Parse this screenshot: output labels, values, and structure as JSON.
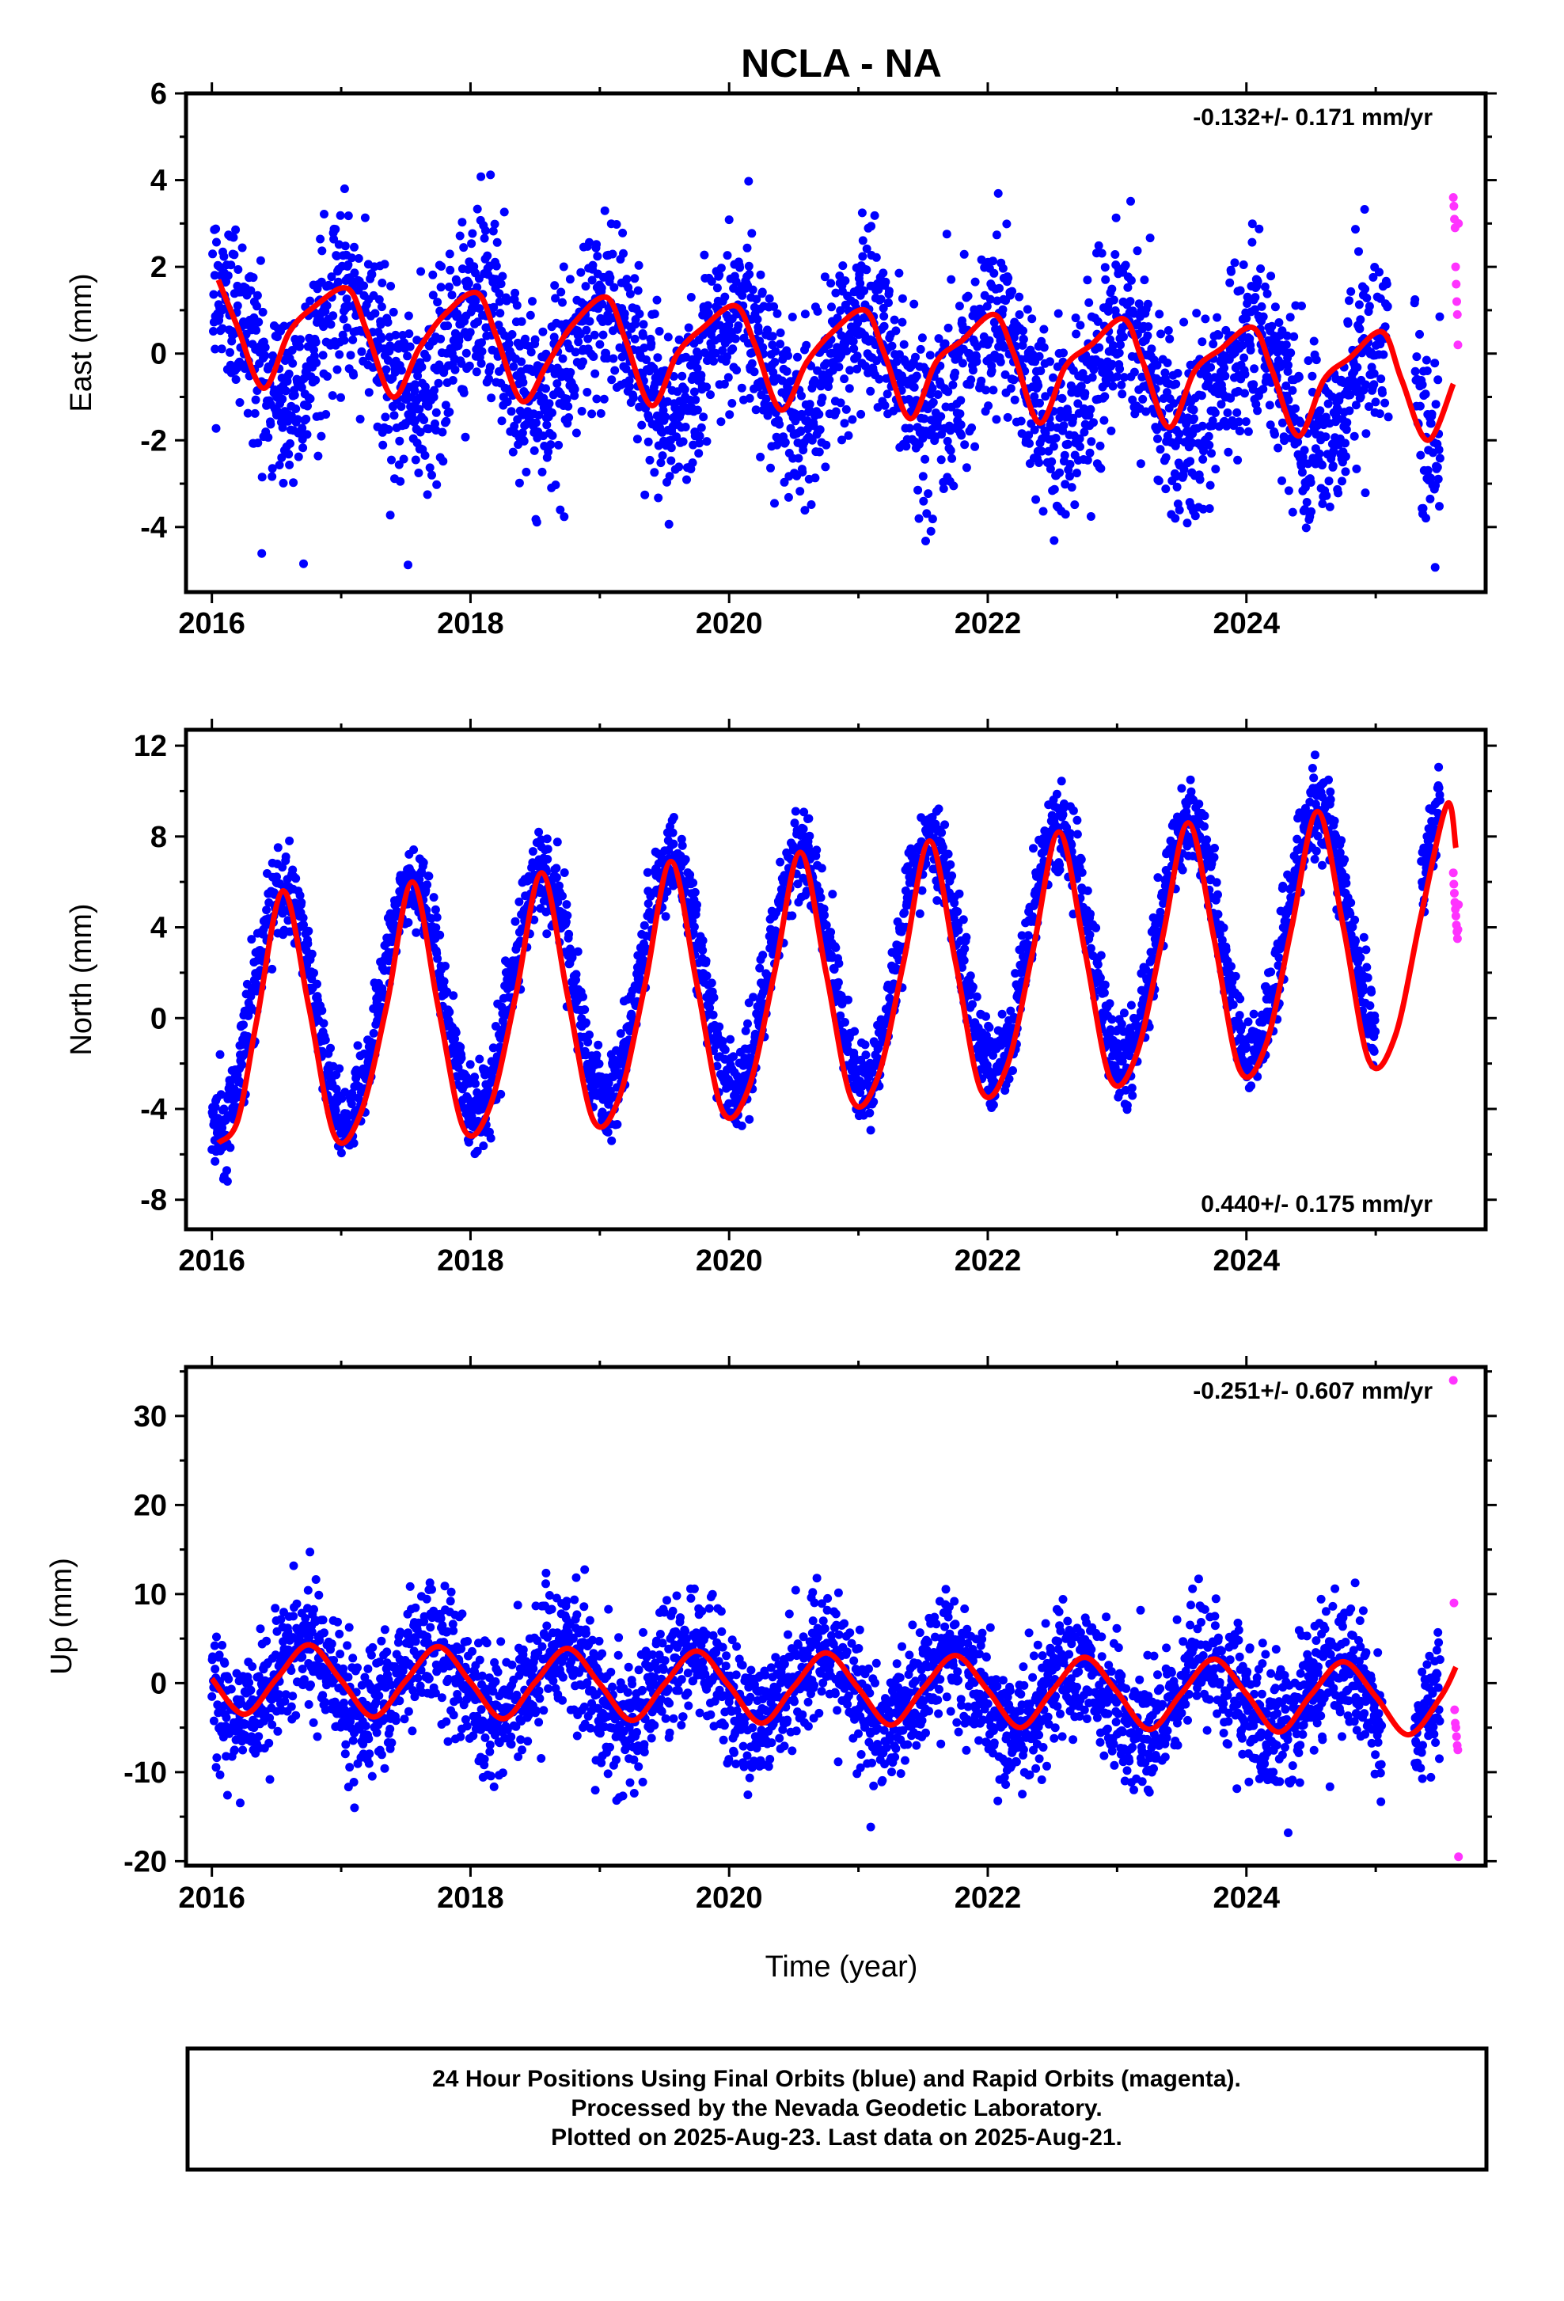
{
  "title": "NCLA - NA",
  "xlabel": "Time (year)",
  "colors": {
    "final": "#0000ff",
    "rapid": "#ff33ff",
    "model": "#ff0000",
    "axis": "#000000"
  },
  "caption": {
    "line1": "24 Hour Positions Using Final Orbits (blue) and Rapid Orbits (magenta).",
    "line2": "Processed by the Nevada Geodetic Laboratory.",
    "line3": "Plotted on 2025-Aug-23. Last data on 2025-Aug-21."
  },
  "chart_data": [
    {
      "type": "scatter",
      "ylabel": "East (mm)",
      "rate_text": "-0.132+/- 0.171 mm/yr",
      "rate_position": "top-right",
      "xlim": [
        2015.8,
        2025.85
      ],
      "ylim": [
        -5.5,
        6
      ],
      "x_ticks": [
        "2016",
        "2018",
        "2020",
        "2022",
        "2024"
      ],
      "y_ticks": [
        "-4",
        "-2",
        "0",
        "2",
        "4",
        "6"
      ],
      "y_tick_values": [
        -4,
        -2,
        0,
        2,
        4,
        6
      ],
      "grid": false,
      "series": [
        {
          "name": "Final Orbits",
          "style": "points",
          "color": "#0000ff",
          "x_start": 2016.0,
          "x_end": 2025.5,
          "trend": -0.132,
          "offset": 0.3,
          "annual_amp": 1.2,
          "annual_peak": 0.05,
          "scatter_sd": 1.05,
          "gaps": [
            [
              2025.1,
              2025.3
            ]
          ]
        },
        {
          "name": "Rapid Orbits",
          "style": "points",
          "color": "#ff33ff",
          "x_start": 2025.6,
          "x_end": 2025.64,
          "values": [
            3.6,
            3.4,
            3.1,
            2.9,
            2.0,
            1.6,
            1.2,
            0.9,
            0.2,
            3.0
          ]
        },
        {
          "name": "Model",
          "style": "line",
          "color": "#ff0000",
          "points": [
            [
              2016.05,
              1.7
            ],
            [
              2016.2,
              0.6
            ],
            [
              2016.4,
              -0.8
            ],
            [
              2016.6,
              0.5
            ],
            [
              2016.8,
              1.1
            ],
            [
              2017.05,
              1.5
            ],
            [
              2017.2,
              0.5
            ],
            [
              2017.4,
              -1.0
            ],
            [
              2017.6,
              0.1
            ],
            [
              2017.8,
              0.9
            ],
            [
              2018.05,
              1.4
            ],
            [
              2018.2,
              0.4
            ],
            [
              2018.4,
              -1.1
            ],
            [
              2018.6,
              -0.2
            ],
            [
              2018.8,
              0.7
            ],
            [
              2019.05,
              1.3
            ],
            [
              2019.2,
              0.3
            ],
            [
              2019.4,
              -1.2
            ],
            [
              2019.6,
              0.0
            ],
            [
              2019.8,
              0.6
            ],
            [
              2020.05,
              1.1
            ],
            [
              2020.2,
              0.2
            ],
            [
              2020.4,
              -1.3
            ],
            [
              2020.6,
              -0.2
            ],
            [
              2020.8,
              0.5
            ],
            [
              2021.05,
              1.0
            ],
            [
              2021.2,
              0.0
            ],
            [
              2021.4,
              -1.5
            ],
            [
              2021.6,
              -0.2
            ],
            [
              2021.8,
              0.3
            ],
            [
              2022.05,
              0.9
            ],
            [
              2022.2,
              0.0
            ],
            [
              2022.4,
              -1.6
            ],
            [
              2022.6,
              -0.3
            ],
            [
              2022.8,
              0.2
            ],
            [
              2023.05,
              0.8
            ],
            [
              2023.2,
              -0.2
            ],
            [
              2023.4,
              -1.7
            ],
            [
              2023.6,
              -0.4
            ],
            [
              2023.8,
              0.1
            ],
            [
              2024.05,
              0.6
            ],
            [
              2024.2,
              -0.4
            ],
            [
              2024.4,
              -1.9
            ],
            [
              2024.6,
              -0.6
            ],
            [
              2024.8,
              -0.1
            ],
            [
              2025.05,
              0.5
            ],
            [
              2025.2,
              -0.6
            ],
            [
              2025.4,
              -2.0
            ],
            [
              2025.6,
              -0.7
            ]
          ]
        }
      ]
    },
    {
      "type": "scatter",
      "ylabel": "North (mm)",
      "rate_text": "0.440+/- 0.175 mm/yr",
      "rate_position": "bottom-right",
      "xlim": [
        2015.8,
        2025.85
      ],
      "ylim": [
        -9.3,
        12.7
      ],
      "x_ticks": [
        "2016",
        "2018",
        "2020",
        "2022",
        "2024"
      ],
      "y_ticks": [
        "-8",
        "-4",
        "0",
        "4",
        "8",
        "12"
      ],
      "y_tick_values": [
        -8,
        -4,
        0,
        4,
        8,
        12
      ],
      "grid": false,
      "series": [
        {
          "name": "Final Orbits",
          "style": "points",
          "color": "#0000ff",
          "x_start": 2016.0,
          "x_end": 2025.5,
          "trend": 0.44,
          "offset": 0.2,
          "annual_amp": 5.2,
          "annual_peak": 0.55,
          "scatter_sd": 0.95,
          "gaps": [
            [
              2025.0,
              2025.35
            ]
          ]
        },
        {
          "name": "Rapid Orbits",
          "style": "points",
          "color": "#ff33ff",
          "x_start": 2025.6,
          "x_end": 2025.64,
          "values": [
            6.4,
            5.9,
            5.5,
            5.1,
            4.8,
            4.5,
            4.1,
            3.8,
            3.5,
            3.9,
            5.0
          ]
        },
        {
          "name": "Model",
          "style": "line",
          "color": "#ff0000",
          "points": [
            [
              2016.05,
              -5.5
            ],
            [
              2016.2,
              -4.5
            ],
            [
              2016.35,
              0.0
            ],
            [
              2016.55,
              5.6
            ],
            [
              2016.75,
              0.5
            ],
            [
              2016.95,
              -5.2
            ],
            [
              2017.15,
              -4.2
            ],
            [
              2017.35,
              0.5
            ],
            [
              2017.55,
              6.0
            ],
            [
              2017.75,
              0.5
            ],
            [
              2017.95,
              -4.9
            ],
            [
              2018.15,
              -3.9
            ],
            [
              2018.35,
              1.0
            ],
            [
              2018.55,
              6.4
            ],
            [
              2018.75,
              1.0
            ],
            [
              2018.95,
              -4.5
            ],
            [
              2019.15,
              -3.5
            ],
            [
              2019.35,
              1.5
            ],
            [
              2019.55,
              6.9
            ],
            [
              2019.75,
              1.5
            ],
            [
              2019.95,
              -4.1
            ],
            [
              2020.15,
              -3.1
            ],
            [
              2020.35,
              2.0
            ],
            [
              2020.55,
              7.3
            ],
            [
              2020.75,
              2.0
            ],
            [
              2020.95,
              -3.6
            ],
            [
              2021.15,
              -2.6
            ],
            [
              2021.35,
              2.5
            ],
            [
              2021.55,
              7.8
            ],
            [
              2021.75,
              2.5
            ],
            [
              2021.95,
              -3.2
            ],
            [
              2022.15,
              -2.1
            ],
            [
              2022.35,
              3.0
            ],
            [
              2022.55,
              8.2
            ],
            [
              2022.75,
              3.0
            ],
            [
              2022.95,
              -2.7
            ],
            [
              2023.15,
              -1.6
            ],
            [
              2023.35,
              3.5
            ],
            [
              2023.55,
              8.6
            ],
            [
              2023.75,
              3.5
            ],
            [
              2023.95,
              -2.3
            ],
            [
              2024.15,
              -1.2
            ],
            [
              2024.35,
              4.0
            ],
            [
              2024.55,
              9.1
            ],
            [
              2024.75,
              4.0
            ],
            [
              2024.95,
              -1.9
            ],
            [
              2025.15,
              -0.8
            ],
            [
              2025.35,
              4.5
            ],
            [
              2025.55,
              9.4
            ],
            [
              2025.62,
              7.5
            ]
          ]
        }
      ]
    },
    {
      "type": "scatter",
      "ylabel": "Up (mm)",
      "rate_text": "-0.251+/- 0.607 mm/yr",
      "rate_position": "top-right",
      "xlim": [
        2015.8,
        2025.85
      ],
      "ylim": [
        -20.5,
        35.5
      ],
      "x_ticks": [
        "2016",
        "2018",
        "2020",
        "2022",
        "2024"
      ],
      "x_ticks_minor": [
        2017,
        2019,
        2021,
        2023,
        2025
      ],
      "y_ticks": [
        "-20",
        "-10",
        "0",
        "10",
        "20",
        "30"
      ],
      "y_tick_values": [
        -20,
        -10,
        0,
        10,
        20,
        30
      ],
      "grid": false,
      "series": [
        {
          "name": "Final Orbits",
          "style": "points",
          "color": "#0000ff",
          "x_start": 2016.0,
          "x_end": 2025.5,
          "trend": -0.251,
          "offset": 0.5,
          "annual_amp": 4.0,
          "annual_peak": 0.7,
          "scatter_sd": 3.6,
          "gaps": [
            [
              2025.05,
              2025.3
            ]
          ]
        },
        {
          "name": "Rapid Orbits",
          "style": "points",
          "color": "#ff33ff",
          "x_start": 2025.6,
          "x_end": 2025.64,
          "values": [
            34,
            9,
            -3,
            -4.5,
            -5,
            -6,
            -7,
            -7.5,
            -19.5
          ]
        },
        {
          "name": "Model",
          "style": "line",
          "color": "#ff0000",
          "points": [
            [
              2016.0,
              0.5
            ],
            [
              2016.25,
              -3.5
            ],
            [
              2016.5,
              0.5
            ],
            [
              2016.75,
              4.3
            ],
            [
              2017.0,
              0.3
            ],
            [
              2017.25,
              -3.8
            ],
            [
              2017.5,
              0.3
            ],
            [
              2017.75,
              4.1
            ],
            [
              2018.0,
              0.1
            ],
            [
              2018.25,
              -4.0
            ],
            [
              2018.5,
              0.1
            ],
            [
              2018.75,
              3.9
            ],
            [
              2019.0,
              -0.1
            ],
            [
              2019.25,
              -4.2
            ],
            [
              2019.5,
              -0.1
            ],
            [
              2019.75,
              3.6
            ],
            [
              2020.0,
              -0.3
            ],
            [
              2020.25,
              -4.5
            ],
            [
              2020.5,
              -0.4
            ],
            [
              2020.75,
              3.4
            ],
            [
              2021.0,
              -0.6
            ],
            [
              2021.25,
              -4.7
            ],
            [
              2021.5,
              -0.6
            ],
            [
              2021.75,
              3.1
            ],
            [
              2022.0,
              -0.8
            ],
            [
              2022.25,
              -5.0
            ],
            [
              2022.5,
              -0.8
            ],
            [
              2022.75,
              2.9
            ],
            [
              2023.0,
              -1.0
            ],
            [
              2023.25,
              -5.2
            ],
            [
              2023.5,
              -1.1
            ],
            [
              2023.75,
              2.7
            ],
            [
              2024.0,
              -1.2
            ],
            [
              2024.25,
              -5.5
            ],
            [
              2024.5,
              -1.3
            ],
            [
              2024.75,
              2.4
            ],
            [
              2025.0,
              -1.5
            ],
            [
              2025.25,
              -5.8
            ],
            [
              2025.5,
              -1.6
            ],
            [
              2025.62,
              1.8
            ]
          ]
        }
      ]
    }
  ]
}
